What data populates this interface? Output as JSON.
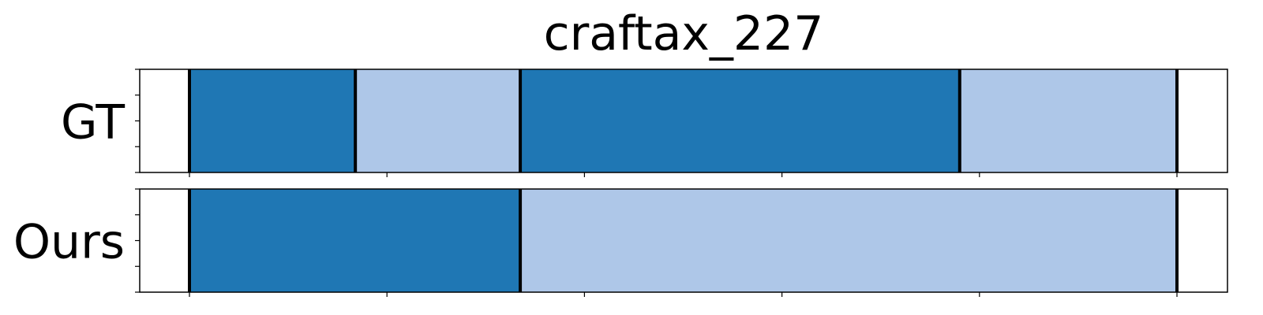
{
  "chart_data": {
    "type": "bar",
    "title": "craftax_227",
    "xlim": [
      0,
      100
    ],
    "xticks": [
      5,
      25,
      45,
      65,
      85,
      105
    ],
    "tick_labels_visible": false,
    "grid": false,
    "colors": {
      "dark": "#1f77b4",
      "light": "#aec7e8",
      "boundary": "#000000"
    },
    "rows": [
      {
        "label": "GT",
        "segments": [
          {
            "start": 5,
            "end": 21.8,
            "color": "dark"
          },
          {
            "start": 21.8,
            "end": 38.5,
            "color": "light"
          },
          {
            "start": 38.5,
            "end": 83,
            "color": "dark"
          },
          {
            "start": 83,
            "end": 105,
            "color": "light"
          }
        ]
      },
      {
        "label": "Ours",
        "segments": [
          {
            "start": 5,
            "end": 38.5,
            "color": "dark"
          },
          {
            "start": 38.5,
            "end": 105,
            "color": "light"
          }
        ]
      }
    ]
  }
}
